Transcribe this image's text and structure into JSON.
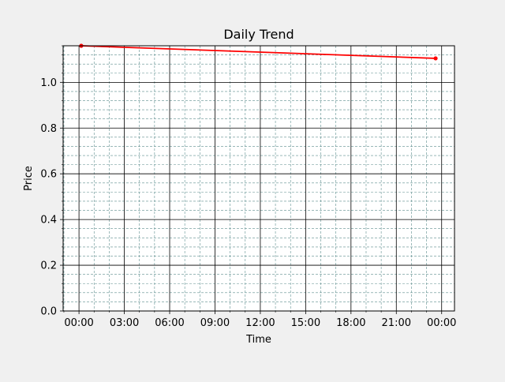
{
  "chart_data": {
    "type": "line",
    "title": "Daily Trend",
    "xlabel": "Time",
    "ylabel": "Price",
    "x_tick_labels": [
      "00:00",
      "03:00",
      "06:00",
      "09:00",
      "12:00",
      "15:00",
      "18:00",
      "21:00",
      "00:00"
    ],
    "x_tick_hours": [
      0,
      3,
      6,
      9,
      12,
      15,
      18,
      21,
      24
    ],
    "xlim_hours": [
      -1.05,
      24.85
    ],
    "y_tick_labels": [
      "0.0",
      "0.2",
      "0.4",
      "0.6",
      "0.8",
      "1.0"
    ],
    "y_tick_values": [
      0.0,
      0.2,
      0.4,
      0.6,
      0.8,
      1.0
    ],
    "ylim": [
      0.0,
      1.16
    ],
    "grid": {
      "major": true,
      "minor": true,
      "major_color": "#000000",
      "minor_color": "#5f8f8f"
    },
    "series": [
      {
        "color": "#ff0000",
        "marker": "circle",
        "points": [
          {
            "x_hours": 0.15,
            "y": 1.16
          },
          {
            "x_hours": 23.6,
            "y": 1.105
          }
        ]
      }
    ]
  }
}
